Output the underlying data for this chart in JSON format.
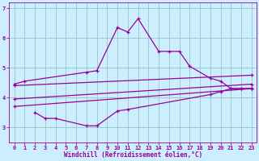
{
  "background_color": "#cceeff",
  "grid_color": "#99cccc",
  "line_color": "#990099",
  "xlabel": "Windchill (Refroidissement éolien,°C)",
  "xlim": [
    -0.5,
    23.5
  ],
  "ylim": [
    2.5,
    7.2
  ],
  "yticks": [
    3,
    4,
    5,
    6,
    7
  ],
  "xticks": [
    0,
    1,
    2,
    3,
    4,
    5,
    6,
    7,
    8,
    9,
    10,
    11,
    12,
    13,
    14,
    15,
    16,
    17,
    18,
    19,
    20,
    21,
    22,
    23
  ],
  "series": [
    {
      "x": [
        0,
        1,
        7,
        8,
        10,
        11,
        12,
        14,
        15,
        16,
        17,
        19,
        20,
        21,
        22,
        23
      ],
      "y": [
        4.45,
        4.55,
        4.85,
        4.9,
        6.35,
        6.2,
        6.65,
        5.55,
        5.55,
        5.55,
        5.05,
        4.65,
        4.55,
        4.3,
        4.3,
        4.3
      ]
    },
    {
      "x": [
        2,
        3,
        4,
        7,
        8,
        10,
        11,
        19,
        20,
        21,
        22,
        23
      ],
      "y": [
        3.5,
        3.3,
        3.3,
        3.05,
        3.05,
        3.55,
        3.6,
        4.1,
        4.2,
        4.3,
        4.3,
        4.3
      ]
    },
    {
      "x": [
        0,
        23
      ],
      "y": [
        3.7,
        4.3
      ]
    },
    {
      "x": [
        0,
        23
      ],
      "y": [
        3.95,
        4.45
      ]
    },
    {
      "x": [
        0,
        23
      ],
      "y": [
        4.4,
        4.75
      ]
    }
  ]
}
